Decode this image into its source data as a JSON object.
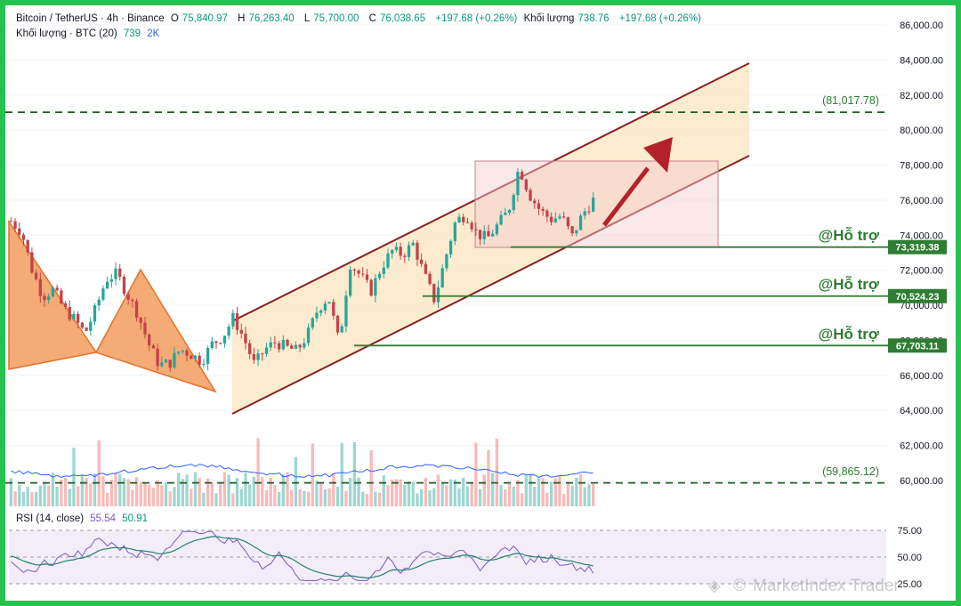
{
  "header": {
    "symbol": "Bitcoin / TetherUS · 4h · Binance",
    "open_label": "O",
    "open": "75,840.97",
    "high_label": "H",
    "high": "76,263.40",
    "low_label": "L",
    "low": "75,700.00",
    "close_label": "C",
    "close": "76,038.65",
    "change": "+197.68 (+0.26%)",
    "volume_label": "Khối lượng",
    "volume": "738.76",
    "volume_change": "+197.68 (+0.26%)",
    "vol_indicator": "Khối lượng · BTC (20)",
    "vol_value": "739",
    "vol_ma": "2K"
  },
  "rsi": {
    "label": "RSI (14, close)",
    "value1": "55.54",
    "value2": "50.91",
    "levels": [
      "75.00",
      "50.00",
      "25.00"
    ]
  },
  "price_axis": [
    "86,000.00",
    "84,000.00",
    "82,000.00",
    "80,000.00",
    "78,000.00",
    "76,000.00",
    "74,000.00",
    "72,000.00",
    "70,000.00",
    "68,000.00",
    "66,000.00",
    "64,000.00",
    "62,000.00",
    "60,000.00"
  ],
  "annotations": {
    "target_level": "(81,017.78)",
    "lower_level": "(59,865.12)",
    "support_label": "@Hỗ trợ",
    "support_tags": [
      "73,319.38",
      "70,524.23",
      "67,703.11"
    ]
  },
  "watermark": "MarketIndex Trader",
  "colors": {
    "frame": "#25c24f",
    "candle_up": "#26a69a",
    "candle_down": "#c2434a",
    "channel_line": "#8b1f24",
    "channel_fill": "#fbe7c6",
    "support": "#2e7d32",
    "arrow": "#b3222a",
    "pattern": "#f0883a"
  },
  "chart_data": {
    "type": "candlestick",
    "title": "Bitcoin / TetherUS · 4h · Binance",
    "ylim": [
      59500,
      86500
    ],
    "price_axis_ticks": [
      60000,
      62000,
      64000,
      66000,
      68000,
      70000,
      72000,
      74000,
      76000,
      78000,
      80000,
      82000,
      84000,
      86000
    ],
    "last_ohlc": {
      "open": 75840.97,
      "high": 76263.4,
      "low": 75700.0,
      "close": 76038.65
    },
    "approx_close_series": [
      74800,
      74200,
      72000,
      70500,
      70900,
      69800,
      69200,
      68400,
      69800,
      71500,
      71800,
      70600,
      69500,
      67800,
      66600,
      66700,
      67500,
      67200,
      66800,
      67800,
      68200,
      69300,
      68100,
      66600,
      67500,
      67900,
      67600,
      67400,
      68300,
      69800,
      70500,
      67800,
      72400,
      71700,
      70800,
      72200,
      73100,
      72900,
      73500,
      71800,
      70300,
      72600,
      74800,
      75200,
      74100,
      73800,
      74600,
      75400,
      77900,
      76300,
      75400,
      74900,
      75100,
      73900,
      75200,
      76000
    ],
    "horizontal_levels": [
      81017.78,
      73319.38,
      70524.23,
      67703.11,
      59865.12
    ],
    "support_levels": [
      73319.38,
      70524.23,
      67703.11
    ],
    "channel": "ascending",
    "rsi_levels": [
      25,
      50,
      75
    ],
    "rsi_values": [
      55.54,
      50.91
    ]
  }
}
